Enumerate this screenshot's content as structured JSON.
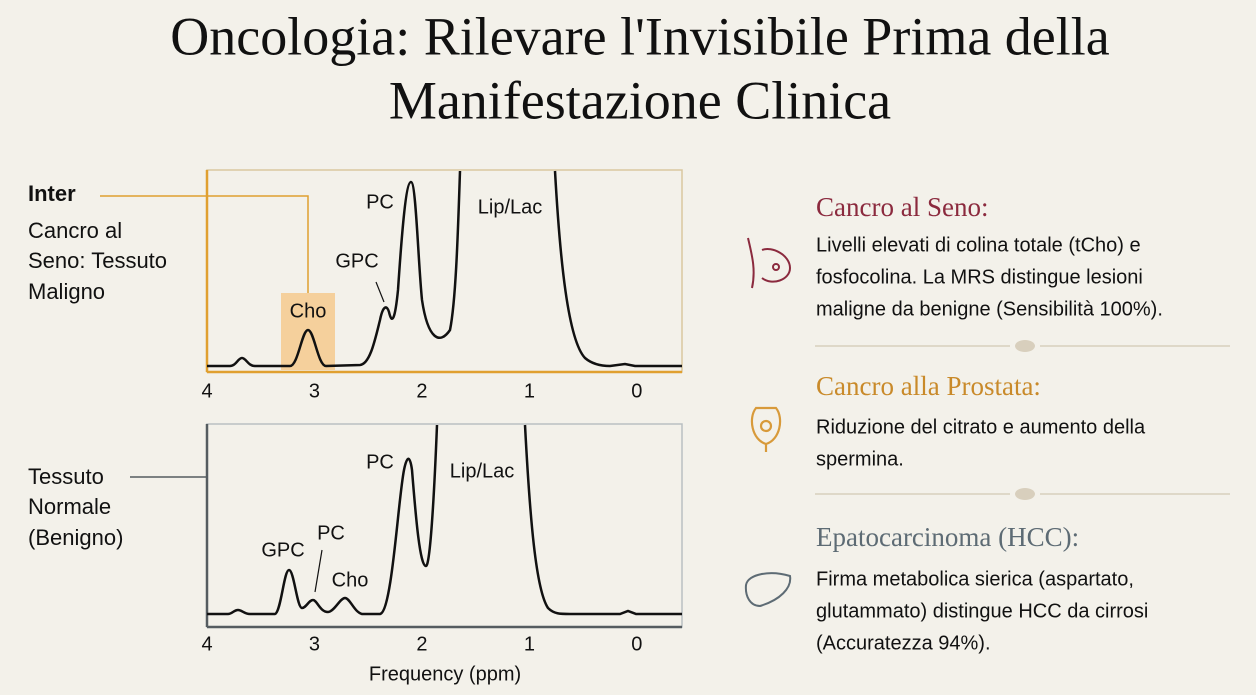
{
  "header": {
    "title": "Oncologia: Rilevare l'Invisibile Prima della Manifestazione Clinica"
  },
  "spectra": [
    {
      "heading": "Inter",
      "label_lines": [
        "Cancro al",
        "Seno: Tessuto",
        "Maligno"
      ],
      "peak_labels": [
        "PC",
        "Lip/Lac",
        "GPC",
        "Cho"
      ],
      "xlim": [
        4,
        -0.42
      ],
      "xticks": [
        4,
        3,
        2,
        1,
        0
      ]
    },
    {
      "label_lines": [
        "Tessuto",
        "Normale",
        "(Benigno)"
      ],
      "peak_labels": [
        "PC",
        "Lip/Lac",
        "GPC",
        "PC",
        "Cho"
      ],
      "xlim": [
        4,
        -0.42
      ],
      "xticks": [
        4,
        3,
        2,
        1,
        0
      ]
    }
  ],
  "x_axis_label": "Frequency (ppm)",
  "items": [
    {
      "title": "Cancro al Seno:",
      "lines": [
        "Livelli elevati di colina totale (tCho) e",
        "fosfocolina. La MRS distingue lesioni",
        "maligne da benigne (Sensibilità 100%)."
      ]
    },
    {
      "title": "Cancro alla Prostata:",
      "lines": [
        "Riduzione del citrato e aumento della",
        "spermina."
      ]
    },
    {
      "title": "Epatocarcinoma (HCC):",
      "lines": [
        "Firma metabolica sierica (aspartato,",
        "glutammato) distingue HCC da cirrosi",
        "(Accuratezza 94%)."
      ]
    }
  ]
}
